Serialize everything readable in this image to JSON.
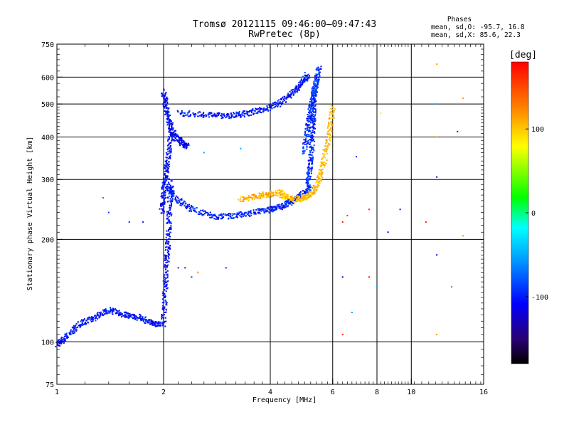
{
  "chart_data": {
    "type": "scatter",
    "title": "Tromsø 20121115 09:46:00–09:47:43",
    "subtitle": "RwPretec (8p)",
    "xlabel": "Frequency [MHz]",
    "ylabel": "Stationary phase Virtual Height [km]",
    "x_scale": "log",
    "y_scale": "log",
    "xlim": [
      1,
      16
    ],
    "ylim": [
      75,
      750
    ],
    "x_ticks": [
      1,
      2,
      4,
      6,
      8,
      10,
      16
    ],
    "x_tick_labels": [
      "1",
      "2",
      "4",
      "6",
      "8",
      "10",
      "16"
    ],
    "y_ticks": [
      75,
      100,
      200,
      300,
      400,
      500,
      600,
      750
    ],
    "y_tick_labels": [
      "75",
      "100",
      "200",
      "300",
      "400",
      "500",
      "600",
      "750"
    ],
    "grid": true,
    "legend": {
      "heading": "Phases",
      "lines": [
        "mean, sd,O: -95.7, 16.8",
        "mean, sd,X:  85.6, 22.3"
      ],
      "placement": "top-right"
    },
    "colorbar": {
      "label": "[deg]",
      "range": [
        -180,
        180
      ],
      "ticks": [
        100,
        0,
        -100
      ],
      "tick_labels": [
        "100",
        "0",
        "-100"
      ]
    },
    "traces": [
      {
        "x": [
          1.0,
          1.06,
          1.15,
          1.28,
          1.4,
          1.55,
          1.7,
          1.85,
          1.97
        ],
        "y": [
          98,
          103,
          112,
          118,
          124,
          120,
          118,
          114,
          112
        ],
        "phase": -105
      },
      {
        "x": [
          2.0,
          2.02,
          2.04,
          2.06,
          2.08,
          2.1
        ],
        "y": [
          112,
          140,
          170,
          200,
          245,
          300
        ],
        "phase": -110
      },
      {
        "x": [
          1.98,
          2.0,
          2.03,
          2.06,
          2.1
        ],
        "y": [
          240,
          270,
          310,
          350,
          420
        ],
        "phase": -108
      },
      {
        "x": [
          2.05,
          2.15,
          2.4,
          2.8,
          3.2,
          3.6,
          4.0,
          4.3,
          4.6,
          4.9,
          5.2
        ],
        "y": [
          285,
          265,
          245,
          233,
          235,
          240,
          245,
          250,
          258,
          268,
          285
        ],
        "phase": -100
      },
      {
        "x": [
          4.3,
          4.7,
          5.0,
          5.3,
          5.5,
          5.7,
          5.9,
          6.0
        ],
        "y": [
          268,
          262,
          265,
          275,
          300,
          350,
          420,
          490
        ],
        "phase": 95
      },
      {
        "x": [
          3.3,
          3.7,
          4.0,
          4.4
        ],
        "y": [
          262,
          268,
          272,
          275
        ],
        "phase": 100
      },
      {
        "x": [
          2.0,
          2.03,
          2.08,
          2.15,
          2.25,
          2.35
        ],
        "y": [
          545,
          490,
          440,
          400,
          385,
          375
        ],
        "phase": -110
      },
      {
        "x": [
          2.2,
          2.6,
          3.0,
          3.4,
          3.8,
          4.2,
          4.6,
          4.9,
          5.1
        ],
        "y": [
          470,
          465,
          460,
          468,
          480,
          500,
          535,
          575,
          610
        ],
        "phase": -105
      },
      {
        "x": [
          5.1,
          5.18,
          5.24,
          5.28,
          5.3,
          5.32
        ],
        "y": [
          290,
          330,
          380,
          440,
          500,
          560
        ],
        "phase": -100
      },
      {
        "x": [
          5.0,
          5.1,
          5.2,
          5.3,
          5.4,
          5.5
        ],
        "y": [
          360,
          420,
          480,
          530,
          580,
          640
        ],
        "phase": -95
      }
    ],
    "isolated_points": [
      {
        "x": 1.35,
        "y": 265,
        "phase": -70
      },
      {
        "x": 1.4,
        "y": 240,
        "phase": -95
      },
      {
        "x": 1.6,
        "y": 225,
        "phase": -100
      },
      {
        "x": 1.75,
        "y": 225,
        "phase": -100
      },
      {
        "x": 2.2,
        "y": 165,
        "phase": -100
      },
      {
        "x": 2.3,
        "y": 165,
        "phase": -100
      },
      {
        "x": 2.4,
        "y": 155,
        "phase": -90
      },
      {
        "x": 2.5,
        "y": 160,
        "phase": 120
      },
      {
        "x": 3.0,
        "y": 165,
        "phase": -100
      },
      {
        "x": 3.3,
        "y": 370,
        "phase": -60
      },
      {
        "x": 2.6,
        "y": 360,
        "phase": -60
      },
      {
        "x": 6.4,
        "y": 225,
        "phase": 170
      },
      {
        "x": 6.6,
        "y": 235,
        "phase": 160
      },
      {
        "x": 6.2,
        "y": 300,
        "phase": 130
      },
      {
        "x": 7.0,
        "y": 350,
        "phase": -100
      },
      {
        "x": 7.6,
        "y": 245,
        "phase": 170
      },
      {
        "x": 8.2,
        "y": 470,
        "phase": 60
      },
      {
        "x": 8.6,
        "y": 210,
        "phase": -110
      },
      {
        "x": 9.3,
        "y": 245,
        "phase": -120
      },
      {
        "x": 11.0,
        "y": 225,
        "phase": 160
      },
      {
        "x": 11.8,
        "y": 655,
        "phase": 110
      },
      {
        "x": 11.8,
        "y": 500,
        "phase": -60
      },
      {
        "x": 11.8,
        "y": 400,
        "phase": 110
      },
      {
        "x": 11.8,
        "y": 305,
        "phase": -120
      },
      {
        "x": 11.8,
        "y": 180,
        "phase": -120
      },
      {
        "x": 11.8,
        "y": 105,
        "phase": 110
      },
      {
        "x": 6.4,
        "y": 155,
        "phase": -120
      },
      {
        "x": 7.6,
        "y": 155,
        "phase": 170
      },
      {
        "x": 6.4,
        "y": 105,
        "phase": 170
      },
      {
        "x": 6.8,
        "y": 122,
        "phase": -60
      },
      {
        "x": 8.0,
        "y": 145,
        "phase": -60
      },
      {
        "x": 13.5,
        "y": 415,
        "phase": -120
      },
      {
        "x": 14.0,
        "y": 520,
        "phase": 110
      },
      {
        "x": 14.0,
        "y": 205,
        "phase": 110
      },
      {
        "x": 13.0,
        "y": 145,
        "phase": -60
      }
    ]
  }
}
